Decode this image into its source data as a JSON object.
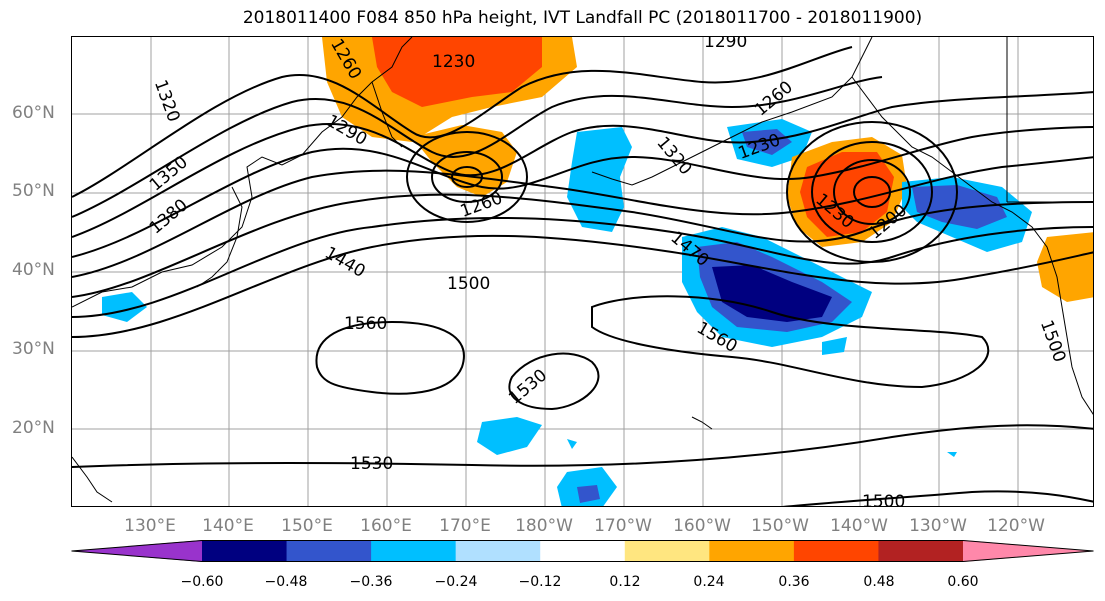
{
  "title": "2018011400 F084 850 hPa height, IVT Landfall PC (2018011700 - 2018011900)",
  "lat_labels": [
    "60°N",
    "50°N",
    "40°N",
    "30°N",
    "20°N"
  ],
  "lon_labels": [
    "130°E",
    "140°E",
    "150°E",
    "160°E",
    "170°E",
    "180°W",
    "170°W",
    "160°W",
    "150°W",
    "140°W",
    "130°W",
    "120°W"
  ],
  "contour_labels": [
    "1290",
    "1320",
    "1260",
    "1230",
    "1290",
    "1350",
    "1320",
    "1260",
    "1230",
    "1380",
    "1260",
    "1230",
    "1200",
    "1440",
    "1470",
    "1500",
    "1560",
    "1560",
    "1530",
    "1530",
    "1500",
    "1500"
  ],
  "colorbar": {
    "colors": [
      "#9933cc",
      "#000080",
      "#3355cc",
      "#00bfff",
      "#b0e0ff",
      "#ffffff",
      "#ffe680",
      "#ffa500",
      "#ff4500",
      "#b22222",
      "#ff88aa"
    ],
    "tick_labels": [
      "−0.60",
      "−0.48",
      "−0.36",
      "−0.24",
      "−0.12",
      "0.12",
      "0.24",
      "0.36",
      "0.48",
      "0.60"
    ]
  }
}
